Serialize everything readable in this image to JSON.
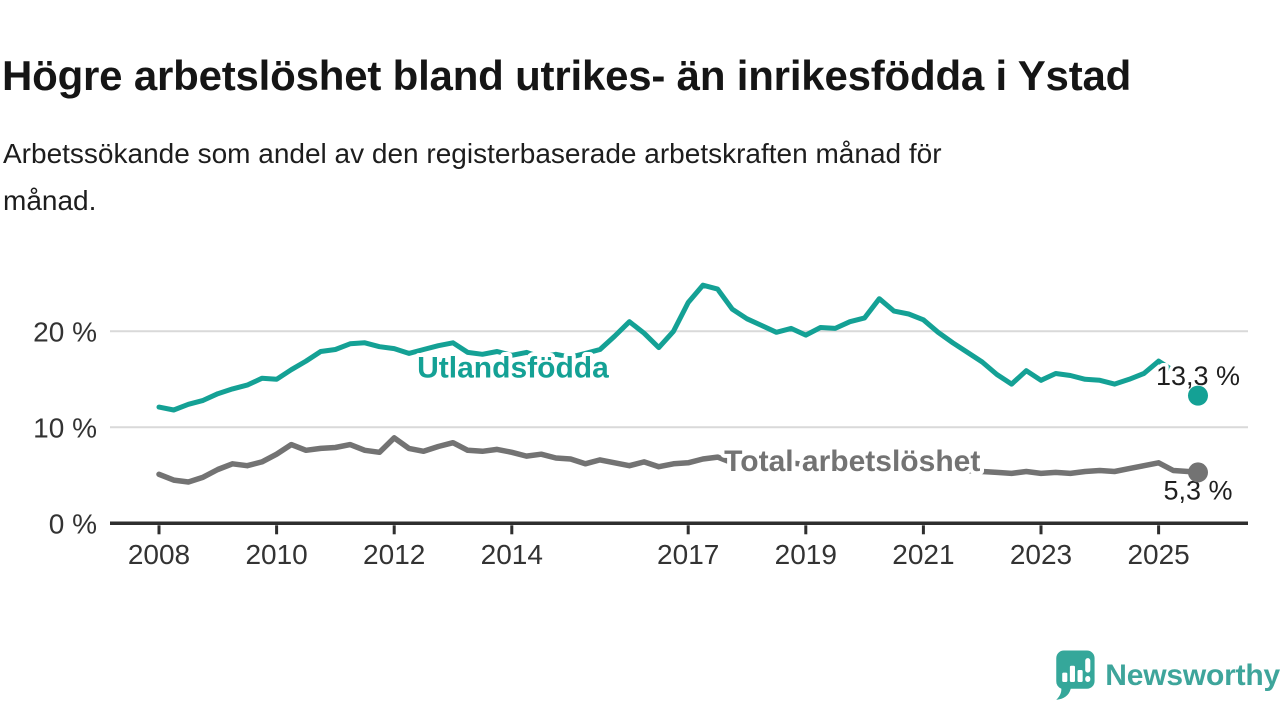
{
  "header": {
    "title": "Högre arbetslöshet bland utrikes- än inrikesfödda i Ystad",
    "subtitle_lines": [
      "Arbetssökande som andel av den registerbaserade arbetskraften månad för",
      "månad."
    ]
  },
  "chart_data": {
    "type": "line",
    "title": "",
    "xlabel": "",
    "ylabel": "",
    "grid": "horizontal-gridlines",
    "legend": "inline-labels-on-lines",
    "x_unit": "year-month",
    "x_start": 2008,
    "x_step": 0.25,
    "x_end": 2025.67,
    "xlim": [
      2007.2,
      2026.5
    ],
    "ylim": [
      0,
      26
    ],
    "x_ticks": [
      2008,
      2010,
      2012,
      2014,
      2017,
      2019,
      2021,
      2023,
      2025
    ],
    "y_ticks": [
      {
        "value": 0,
        "label": "0 %"
      },
      {
        "value": 10,
        "label": "10 %"
      },
      {
        "value": 20,
        "label": "20 %"
      }
    ],
    "colors": {
      "grid": "#d9d9d9",
      "axis": "#2e2e2e",
      "tick_text": "#333333",
      "value_text": "#1f1f1f",
      "background": "#ffffff"
    },
    "series": [
      {
        "id": "utlandsfodda",
        "name": "Utlandsfödda",
        "color": "#14A195",
        "end_label": "13,3 %",
        "end_label_pos": {
          "x_year": 2025.67,
          "y_value": 14.4
        },
        "name_label_pos": {
          "x_year": 2014.02,
          "y_value": 15.2
        },
        "values": [
          12.1,
          11.8,
          12.4,
          12.8,
          13.5,
          14.0,
          14.4,
          15.1,
          15.0,
          16.0,
          16.9,
          17.9,
          18.1,
          18.7,
          18.8,
          18.4,
          18.2,
          17.7,
          18.1,
          18.5,
          18.8,
          17.8,
          17.6,
          17.9,
          17.5,
          17.8,
          17.3,
          17.6,
          17.3,
          17.7,
          18.1,
          19.5,
          21.0,
          19.8,
          18.3,
          20.0,
          23.0,
          24.8,
          24.4,
          22.3,
          21.3,
          20.6,
          19.9,
          20.3,
          19.6,
          20.4,
          20.3,
          21.0,
          21.4,
          23.4,
          22.1,
          21.8,
          21.2,
          19.9,
          18.8,
          17.8,
          16.8,
          15.5,
          14.5,
          15.9,
          14.9,
          15.6,
          15.4,
          15.0,
          14.9,
          14.5,
          15.0,
          15.6,
          16.9,
          15.9,
          14.5,
          13.3
        ]
      },
      {
        "id": "total-arbetsloshet",
        "name": "Total arbetslöshet",
        "color": "#737373",
        "end_label": "5,3 %",
        "end_label_pos": {
          "x_year": 2025.67,
          "y_value": 2.5
        },
        "name_label_pos": {
          "x_year": 2019.79,
          "y_value": 5.45
        },
        "values": [
          5.1,
          4.5,
          4.3,
          4.8,
          5.6,
          6.2,
          6.0,
          6.4,
          7.2,
          8.2,
          7.6,
          7.8,
          7.9,
          8.2,
          7.6,
          7.4,
          8.9,
          7.8,
          7.5,
          8.0,
          8.4,
          7.6,
          7.5,
          7.7,
          7.4,
          7.0,
          7.2,
          6.8,
          6.7,
          6.2,
          6.6,
          6.3,
          6.0,
          6.4,
          5.9,
          6.2,
          6.3,
          6.7,
          6.9,
          6.3,
          6.6,
          6.4,
          6.2,
          6.3,
          6.1,
          6.0,
          5.9,
          6.0,
          6.2,
          6.5,
          6.3,
          6.1,
          5.9,
          5.7,
          5.6,
          5.5,
          5.4,
          5.3,
          5.2,
          5.4,
          5.2,
          5.3,
          5.2,
          5.4,
          5.5,
          5.4,
          5.7,
          6.0,
          6.3,
          5.5,
          5.4,
          5.3
        ]
      }
    ]
  },
  "footer": {
    "brand": "Newsworthy",
    "brand_color": "#3EA59B",
    "logo_icon": "bar-chart-speech-bubble-icon"
  }
}
